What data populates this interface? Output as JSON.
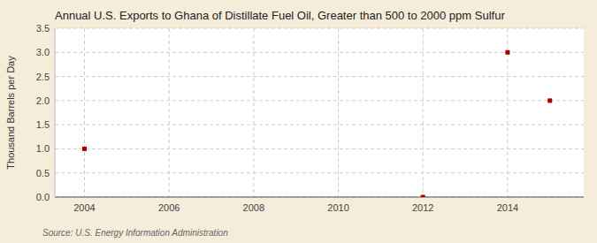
{
  "chart_data": {
    "type": "scatter",
    "title": "Annual U.S. Exports to Ghana of Distillate Fuel Oil, Greater than 500 to 2000 ppm Sulfur",
    "y_label": "Thousand Barrels per Day",
    "annotations": [
      "Source: U.S. Energy Information Administration"
    ],
    "x": [
      2004,
      2012,
      2014,
      2015
    ],
    "values": [
      1.0,
      0.0,
      3.0,
      2.0
    ],
    "color": "#aa0000",
    "marker": "square",
    "xlim": [
      2003.3,
      2015.8
    ],
    "ylim": [
      0.0,
      3.5
    ],
    "xticks": [
      2004,
      2006,
      2008,
      2010,
      2012,
      2014
    ],
    "yticks": [
      {
        "value": 0.0,
        "label": "0.0"
      },
      0.5,
      {
        "value": 1.0,
        "label": "1.0"
      },
      1.5,
      {
        "value": 2.0,
        "label": "2.0"
      },
      2.5,
      {
        "value": 3.0,
        "label": "3.0"
      },
      3.5
    ],
    "grid": true
  }
}
